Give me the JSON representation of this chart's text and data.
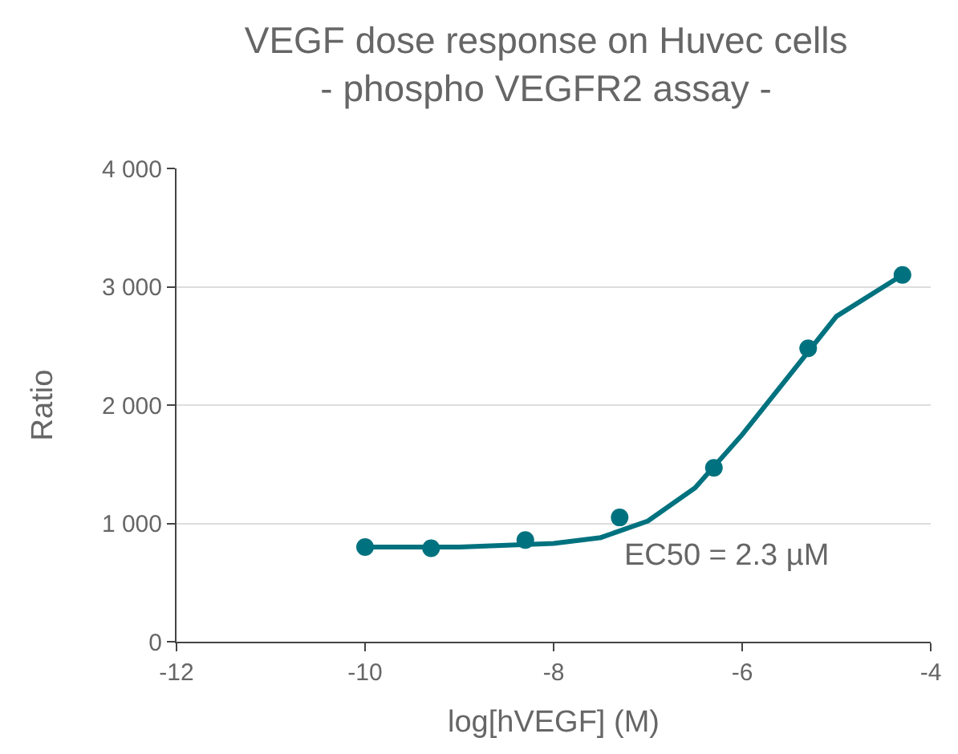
{
  "chart_data": {
    "type": "scatter",
    "title": "VEGF dose response on Huvec cells\n- phospho VEGFR2 assay -",
    "xlabel": "log[hVEGF] (M)",
    "ylabel": "Ratio",
    "series": [
      {
        "type": "line",
        "color": "#00727f",
        "x": [
          -10,
          -9,
          -8,
          -7.5,
          -7,
          -6.5,
          -6,
          -5.5,
          -5,
          -4.5,
          -4.3
        ],
        "values": [
          800,
          800,
          830,
          880,
          1020,
          1300,
          1750,
          2250,
          2750,
          3000,
          3100
        ]
      },
      {
        "color": "#00727f",
        "marker": "circle",
        "x": [
          -10,
          -9.3,
          -8.3,
          -7.3,
          -6.3,
          -5.3,
          -4.3
        ],
        "values": [
          800,
          790,
          860,
          1050,
          1470,
          2480,
          3100
        ]
      }
    ],
    "annotations": [
      "EC50 = 2.3 µM"
    ],
    "xlim": [
      -12,
      -4
    ],
    "xticks": [
      -12,
      -10,
      -8,
      -6,
      -4
    ],
    "ylim": [
      0,
      4000
    ],
    "yticks": [
      0,
      {
        "value": 1000,
        "label": "1 000"
      },
      {
        "value": 2000,
        "label": "2 000"
      },
      {
        "value": 3000,
        "label": "3 000"
      },
      {
        "value": 4000,
        "label": "4 000"
      }
    ],
    "grid": "y"
  }
}
